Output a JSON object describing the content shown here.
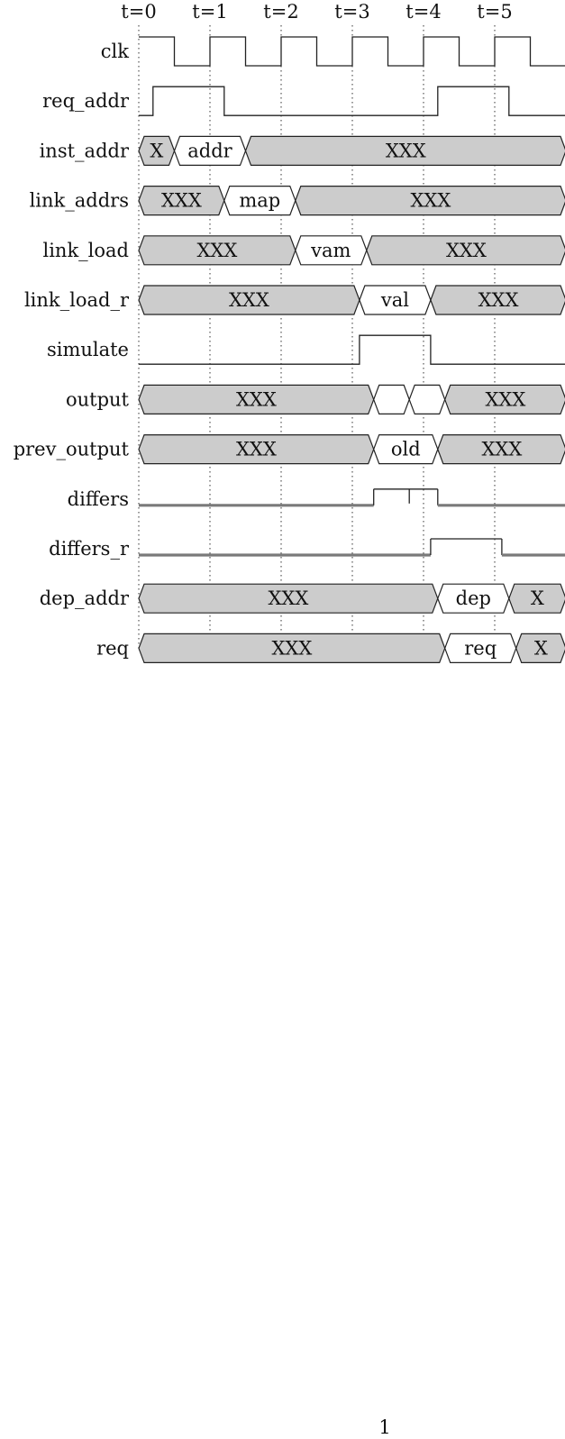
{
  "timing_diagram": {
    "time_labels": [
      "t=0",
      "t=1",
      "t=2",
      "t=3",
      "t=4",
      "t=5"
    ],
    "colors": {
      "line": "#222222",
      "bus_unknown_fill": "#cccccc",
      "bus_known_fill": "#ffffff",
      "grid": "#333333",
      "thick_line": "#7a7a7a"
    },
    "signals": [
      {
        "name": "clk",
        "kind": "digital",
        "points": [
          [
            0,
            1
          ],
          [
            0.5,
            1
          ],
          [
            0.5,
            0
          ],
          [
            1,
            0
          ],
          [
            1,
            1
          ],
          [
            1.5,
            1
          ],
          [
            1.5,
            0
          ],
          [
            2,
            0
          ],
          [
            2,
            1
          ],
          [
            2.5,
            1
          ],
          [
            2.5,
            0
          ],
          [
            3,
            0
          ],
          [
            3,
            1
          ],
          [
            3.5,
            1
          ],
          [
            3.5,
            0
          ],
          [
            4,
            0
          ],
          [
            4,
            1
          ],
          [
            4.5,
            1
          ],
          [
            4.5,
            0
          ],
          [
            5,
            0
          ],
          [
            5,
            1
          ],
          [
            5.5,
            1
          ],
          [
            5.5,
            0
          ],
          [
            6,
            0
          ]
        ]
      },
      {
        "name": "req_addr",
        "kind": "digital",
        "points": [
          [
            0,
            0
          ],
          [
            0.2,
            0
          ],
          [
            0.2,
            1
          ],
          [
            1.2,
            1
          ],
          [
            1.2,
            0
          ],
          [
            4.2,
            0
          ],
          [
            4.2,
            1
          ],
          [
            5.2,
            1
          ],
          [
            5.2,
            0
          ],
          [
            6,
            0
          ]
        ]
      },
      {
        "name": "inst_addr",
        "kind": "bus",
        "segments": [
          {
            "label": "X",
            "start": 0,
            "end": 0.5,
            "unknown": true
          },
          {
            "label": "addr",
            "start": 0.5,
            "end": 1.5,
            "unknown": false
          },
          {
            "label": "XXX",
            "start": 1.5,
            "end": 6,
            "unknown": true
          }
        ]
      },
      {
        "name": "link_addrs",
        "kind": "bus",
        "segments": [
          {
            "label": "XXX",
            "start": 0,
            "end": 1.2,
            "unknown": true
          },
          {
            "label": "map",
            "start": 1.2,
            "end": 2.2,
            "unknown": false
          },
          {
            "label": "XXX",
            "start": 2.2,
            "end": 6,
            "unknown": true
          }
        ]
      },
      {
        "name": "link_load",
        "kind": "bus",
        "segments": [
          {
            "label": "XXX",
            "start": 0,
            "end": 2.2,
            "unknown": true
          },
          {
            "label": "vam",
            "start": 2.2,
            "end": 3.2,
            "unknown": false
          },
          {
            "label": "XXX",
            "start": 3.2,
            "end": 6,
            "unknown": true
          }
        ]
      },
      {
        "name": "link_load_r",
        "kind": "bus",
        "segments": [
          {
            "label": "XXX",
            "start": 0,
            "end": 3.1,
            "unknown": true
          },
          {
            "label": "val",
            "start": 3.1,
            "end": 4.1,
            "unknown": false
          },
          {
            "label": "XXX",
            "start": 4.1,
            "end": 6,
            "unknown": true
          }
        ]
      },
      {
        "name": "simulate",
        "kind": "digital",
        "points": [
          [
            0,
            0
          ],
          [
            3.1,
            0
          ],
          [
            3.1,
            1
          ],
          [
            4.1,
            1
          ],
          [
            4.1,
            0
          ],
          [
            6,
            0
          ],
          [
            6,
            0.25
          ]
        ]
      },
      {
        "name": "output",
        "kind": "bus",
        "segments": [
          {
            "label": "XXX",
            "start": 0,
            "end": 3.3,
            "unknown": true
          },
          {
            "label": "",
            "start": 3.3,
            "end": 3.8,
            "unknown": false
          },
          {
            "label": "",
            "start": 3.8,
            "end": 4.3,
            "unknown": false
          },
          {
            "label": "XXX",
            "start": 4.3,
            "end": 6,
            "unknown": true
          }
        ]
      },
      {
        "name": "prev_output",
        "kind": "bus",
        "segments": [
          {
            "label": "XXX",
            "start": 0,
            "end": 3.3,
            "unknown": true
          },
          {
            "label": "old",
            "start": 3.3,
            "end": 4.2,
            "unknown": false
          },
          {
            "label": "XXX",
            "start": 4.2,
            "end": 6,
            "unknown": true
          }
        ]
      },
      {
        "name": "differs",
        "kind": "digital-thick",
        "points": [
          [
            0,
            0
          ],
          [
            3.3,
            0
          ],
          [
            3.3,
            1
          ],
          [
            4.2,
            1
          ],
          [
            4.2,
            0
          ],
          [
            6,
            0
          ]
        ],
        "marks": [
          3.8
        ]
      },
      {
        "name": "differs_r",
        "kind": "digital-thick",
        "points": [
          [
            0,
            0
          ],
          [
            4.1,
            0
          ],
          [
            4.1,
            1
          ],
          [
            5.1,
            1
          ],
          [
            5.1,
            0
          ],
          [
            6,
            0
          ]
        ],
        "marks": []
      },
      {
        "name": "dep_addr",
        "kind": "bus",
        "segments": [
          {
            "label": "XXX",
            "start": 0,
            "end": 4.2,
            "unknown": true
          },
          {
            "label": "dep",
            "start": 4.2,
            "end": 5.2,
            "unknown": false
          },
          {
            "label": "X",
            "start": 5.2,
            "end": 6,
            "unknown": true
          }
        ]
      },
      {
        "name": "req",
        "kind": "bus",
        "segments": [
          {
            "label": "XXX",
            "start": 0,
            "end": 4.3,
            "unknown": true
          },
          {
            "label": "req",
            "start": 4.3,
            "end": 5.3,
            "unknown": false
          },
          {
            "label": "X",
            "start": 5.3,
            "end": 6,
            "unknown": true
          }
        ]
      }
    ]
  },
  "page_number": "1"
}
